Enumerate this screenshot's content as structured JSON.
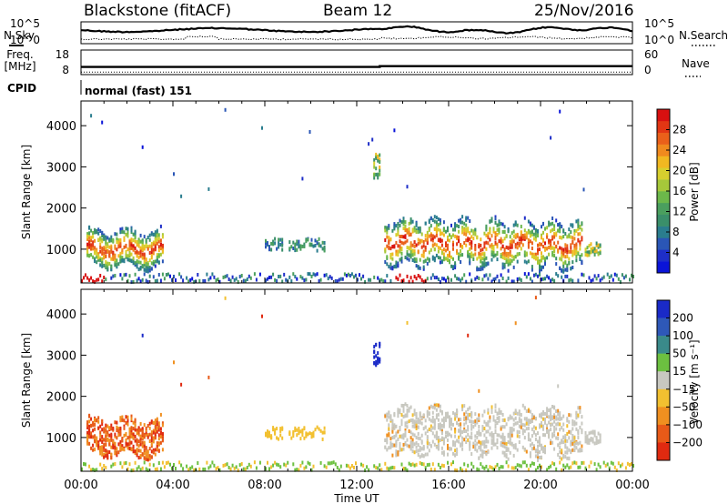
{
  "header": {
    "station": "Blackstone (fitACF)",
    "beam": "Beam 12",
    "date": "25/Nov/2016"
  },
  "chart_data": [
    {
      "type": "line",
      "name": "noise-panel",
      "left_label": "N.Sky",
      "right_label": "N.Search",
      "left_ticks": [
        "10^5",
        "10^0"
      ],
      "right_ticks": [
        "10^5",
        "10^0"
      ],
      "series": [
        {
          "name": "N.Sky",
          "style": "solid"
        },
        {
          "name": "N.Search",
          "style": "dotted"
        }
      ]
    },
    {
      "type": "line",
      "name": "frequency-panel",
      "left_label": [
        "Freq.",
        "[MHz]"
      ],
      "right_label": "Nave",
      "left_ticks": [
        "18",
        "8"
      ],
      "right_ticks": [
        "60",
        "0"
      ],
      "ylim_left": [
        8,
        18
      ],
      "ylim_right": [
        0,
        60
      ],
      "x": [
        0,
        13,
        13,
        24
      ],
      "freq_values": [
        10.3,
        10.3,
        10.8,
        10.8
      ],
      "nave_values": [
        2,
        2,
        2,
        2
      ]
    },
    {
      "type": "table",
      "name": "cpid-row",
      "label": "CPID",
      "value": "normal (fast) 151"
    },
    {
      "type": "heatmap",
      "name": "power",
      "ylabel": "Slant Range [km]",
      "yticks": [
        "1000",
        "2000",
        "3000",
        "4000"
      ],
      "ylim": [
        180,
        4600
      ],
      "xlim": [
        0,
        24
      ],
      "colorbar": {
        "label": "Power [dB]",
        "ticks": [
          "4",
          "8",
          "12",
          "16",
          "20",
          "24",
          "28"
        ],
        "range": [
          0,
          32
        ],
        "colors": [
          "#0a14d8",
          "#1e2ec8",
          "#2a56b6",
          "#2a7d8e",
          "#3a8f6a",
          "#4a9f5e",
          "#6cb84a",
          "#a6c83a",
          "#d7cf2e",
          "#f1b821",
          "#f08a1e",
          "#ea601a",
          "#e23614",
          "#d81010"
        ]
      }
    },
    {
      "type": "heatmap",
      "name": "velocity",
      "ylabel": "Slant Range [km]",
      "yticks": [
        "1000",
        "2000",
        "3000",
        "4000"
      ],
      "ylim": [
        180,
        4600
      ],
      "xlim": [
        0,
        24
      ],
      "xlabel": "Time UT",
      "xticks": [
        "00:00",
        "04:00",
        "08:00",
        "12:00",
        "16:00",
        "20:00",
        "00:00"
      ],
      "colorbar": {
        "label": "Velocity [m s⁻¹]",
        "ticks": [
          "200",
          "100",
          "50",
          "15",
          "−15",
          "−50",
          "−100",
          "−200"
        ],
        "colors": [
          "#1a2ac8",
          "#2e58b8",
          "#3a8a8a",
          "#6cc040",
          "#c8c8c0",
          "#f2c030",
          "#f09020",
          "#e85a18",
          "#e02a10"
        ]
      }
    }
  ]
}
